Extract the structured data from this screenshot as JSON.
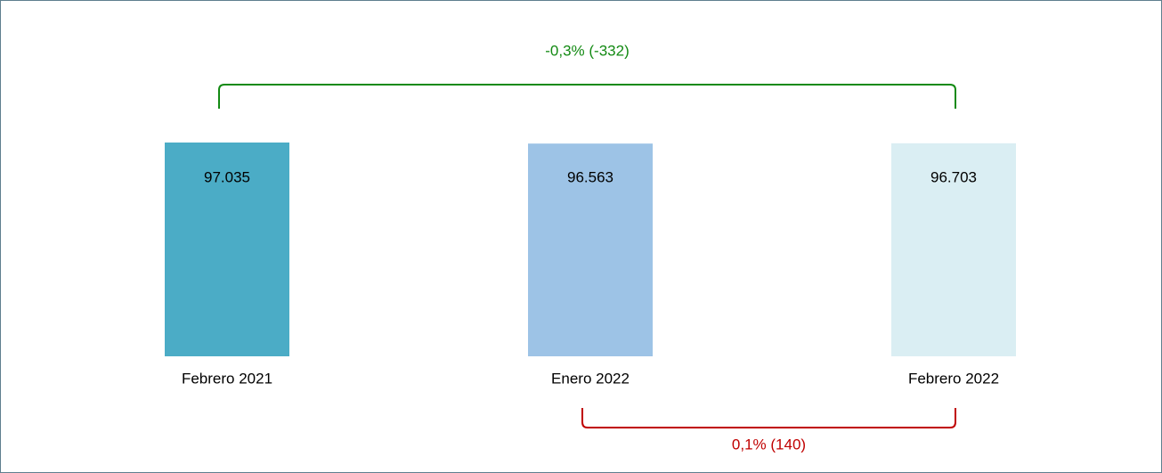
{
  "chart_data": {
    "type": "bar",
    "categories": [
      "Febrero 2021",
      "Enero 2022",
      "Febrero 2022"
    ],
    "values": [
      97035,
      96563,
      96703
    ],
    "value_labels": [
      "97.035",
      "96.563",
      "96.703"
    ],
    "colors": [
      "#4bacc6",
      "#9dc3e6",
      "#daeef3"
    ],
    "annotations": [
      {
        "text": "-0,3% (-332)",
        "from": "Febrero 2021",
        "to": "Febrero 2022",
        "color": "#138a13",
        "position": "top"
      },
      {
        "text": "0,1% (140)",
        "from": "Enero 2022",
        "to": "Febrero 2022",
        "color": "#c00000",
        "position": "bottom"
      }
    ]
  }
}
